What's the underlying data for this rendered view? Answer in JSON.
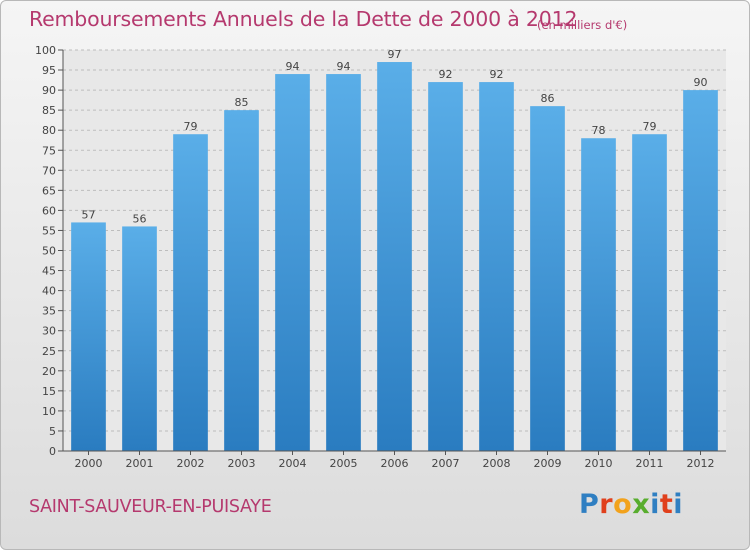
{
  "title": "Remboursements Annuels de la Dette de 2000 à 2012",
  "subtitle": "(en milliers d'€)",
  "location": "SAINT-SAUVEUR-EN-PUISAYE",
  "logo": {
    "text": "Proxiti",
    "colors": [
      "#2f7fc2",
      "#e0401c",
      "#f2a21c",
      "#58ad2e",
      "#2f7fc2",
      "#e0401c"
    ]
  },
  "colors": {
    "title": "#b5396e",
    "bar_top": "#5aaee8",
    "bar_bottom": "#2a7cc0",
    "grid": "#bdbdbd"
  },
  "chart_data": {
    "type": "bar",
    "categories": [
      "2000",
      "2001",
      "2002",
      "2003",
      "2004",
      "2005",
      "2006",
      "2007",
      "2008",
      "2009",
      "2010",
      "2011",
      "2012"
    ],
    "values": [
      57,
      56,
      79,
      85,
      94,
      94,
      97,
      92,
      92,
      86,
      78,
      79,
      90
    ],
    "ylim": [
      0,
      100
    ],
    "yticks": [
      0,
      5,
      10,
      15,
      20,
      25,
      30,
      35,
      40,
      45,
      50,
      55,
      60,
      65,
      70,
      75,
      80,
      85,
      90,
      95,
      100
    ],
    "grid": true,
    "data_labels": true
  }
}
